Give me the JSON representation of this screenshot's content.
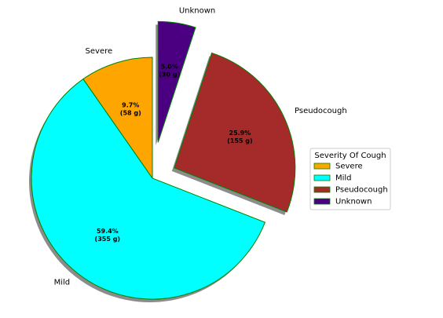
{
  "chart_data": {
    "type": "pie",
    "legend_title": "Severity Of Cough",
    "legend_position": "center-right",
    "unit": "g",
    "slices": [
      {
        "name": "Severe",
        "value": 58,
        "percent_label": "9.7%",
        "amount_label": "(58 g)",
        "color": "#ffa500",
        "explode": 0.0
      },
      {
        "name": "Mild",
        "value": 355,
        "percent_label": "59.4%",
        "amount_label": "(355 g)",
        "color": "#00ffff",
        "explode": 0.0
      },
      {
        "name": "Pseudocough",
        "value": 155,
        "percent_label": "25.9%",
        "amount_label": "(155 g)",
        "color": "#a52a2a",
        "explode": 0.2
      },
      {
        "name": "Unknown",
        "value": 30,
        "percent_label": "5.0%",
        "amount_label": "(30 g)",
        "color": "#4b0082",
        "explode": 0.3
      }
    ],
    "edge_color": "#008000",
    "shadow": true,
    "start_angle_deg": 90,
    "counterclockwise": true
  }
}
